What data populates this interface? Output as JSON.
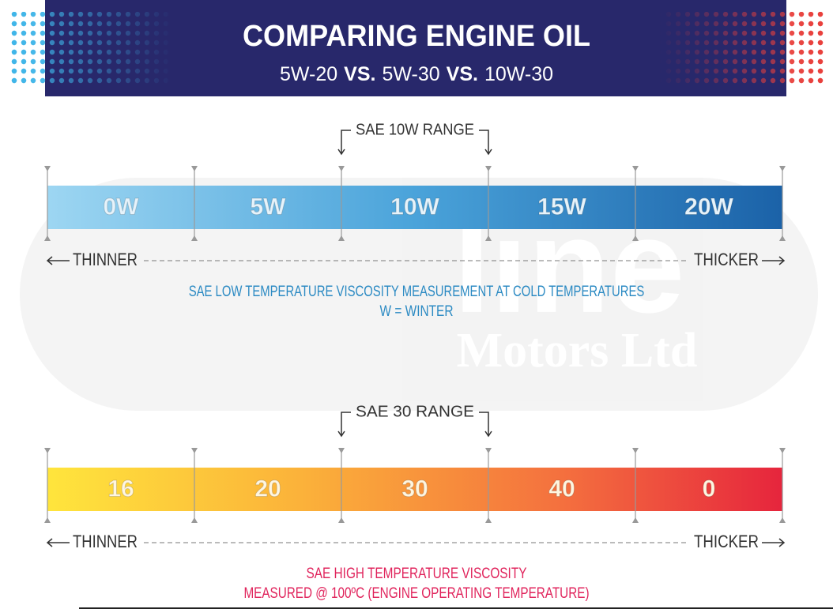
{
  "header": {
    "title": "COMPARING ENGINE OIL",
    "subtitle": [
      "5W-20",
      "VS.",
      "5W-30",
      "VS.",
      "10W-30"
    ]
  },
  "watermark": {
    "text": "line",
    "subtext": "Motors Ltd"
  },
  "scales": [
    {
      "range_label": "SAE 10W RANGE",
      "segments": [
        "0W",
        "5W",
        "10W",
        "15W",
        "20W"
      ],
      "left": "THINNER",
      "right": "THICKER",
      "caption": [
        "SAE LOW TEMPERATURE VISCOSITY MEASUREMENT AT COLD TEMPERATURES",
        "W = WINTER"
      ]
    },
    {
      "range_label": "SAE 30 RANGE",
      "segments": [
        "16",
        "20",
        "30",
        "40",
        "0"
      ],
      "left": "THINNER",
      "right": "THICKER",
      "caption": [
        "SAE HIGH TEMPERATURE VISCOSITY",
        "MEASURED @ 100ºC (ENGINE OPERATING TEMPERATURE)"
      ]
    }
  ]
}
